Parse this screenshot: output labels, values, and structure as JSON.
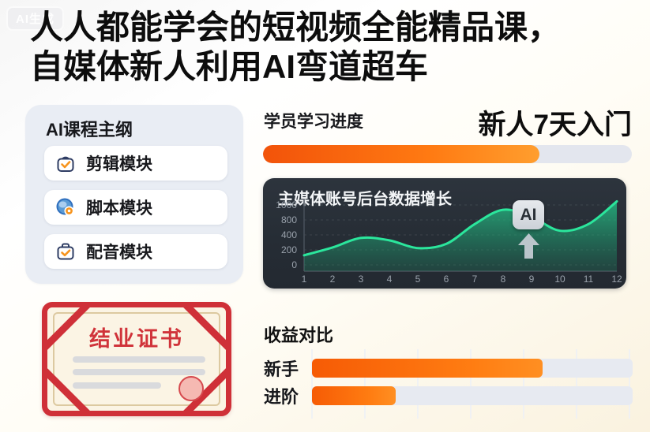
{
  "watermark": "AI生成",
  "title": {
    "line1": "人人都能学会的短视频全能精品课，",
    "line2": "自媒体新人利用AI弯道超车"
  },
  "sidebar": {
    "heading": "AI课程主纲",
    "items": [
      {
        "label": "剪辑模块",
        "icon": "bag-check-icon"
      },
      {
        "label": "脚本模块",
        "icon": "globe-badge-icon"
      },
      {
        "label": "配音模块",
        "icon": "briefcase-check-icon"
      }
    ]
  },
  "progress": {
    "heading": "学员学习进度",
    "badge": "新人7天入门",
    "percent": 75
  },
  "chart_data": {
    "type": "area",
    "title": "主媒体账号后台数据增长",
    "x": [
      1,
      2,
      3,
      4,
      5,
      6,
      7,
      8,
      9,
      10,
      11,
      12
    ],
    "values": [
      160,
      290,
      450,
      410,
      280,
      350,
      680,
      920,
      800,
      570,
      680,
      1060
    ],
    "y_tick_labels": [
      "1000",
      "800",
      "400",
      "200",
      "0"
    ],
    "ylim": [
      0,
      1000
    ],
    "xlabel": "",
    "ylabel": "",
    "grid": true,
    "legend_position": "none",
    "annotation": "AI",
    "line_color": "#2be69c",
    "fill_color": "#1fbf84"
  },
  "certificate": {
    "title": "结业证书"
  },
  "earnings": {
    "heading": "收益对比",
    "rows": [
      {
        "label": "新手",
        "percent": 72
      },
      {
        "label": "进阶",
        "percent": 26
      }
    ]
  },
  "colors": {
    "accent_orange": "#ff6a00",
    "chart_green": "#2be69c",
    "certificate_red": "#cf3038",
    "dark_panel": "#2a313a"
  }
}
